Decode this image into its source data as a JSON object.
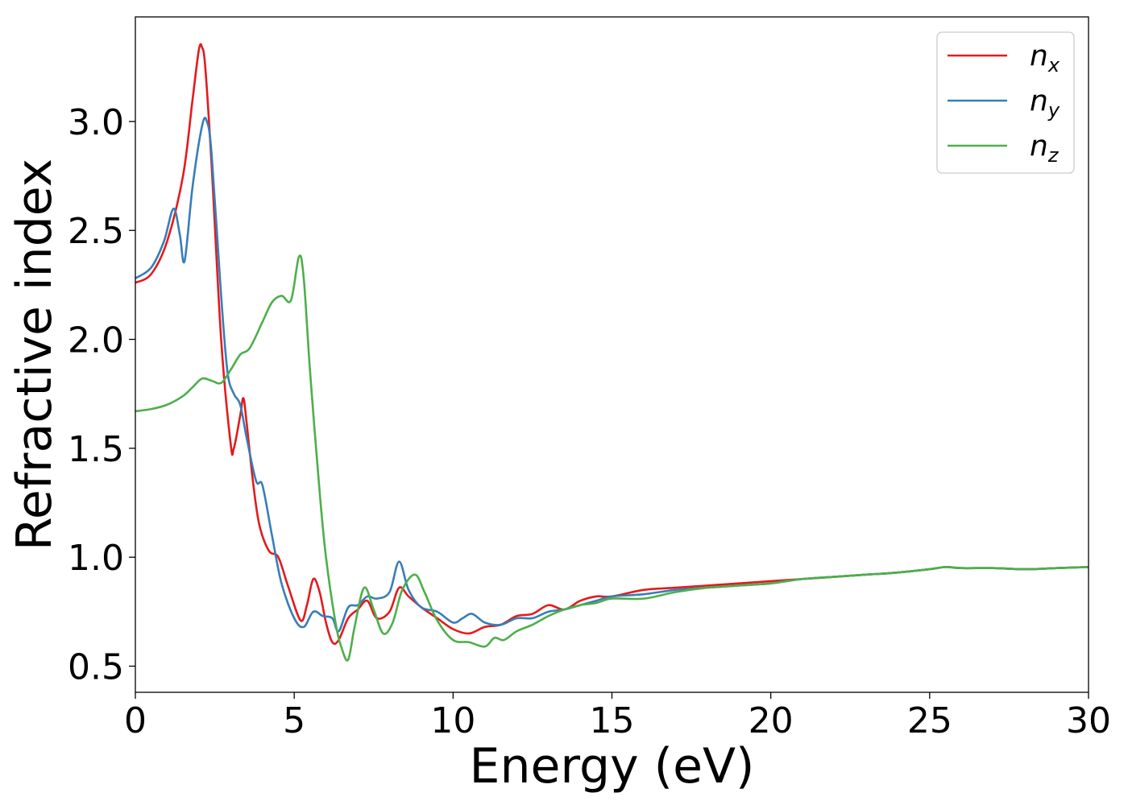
{
  "chart_data": {
    "type": "line",
    "xlabel": "Energy (eV)",
    "ylabel": "Refractive index",
    "xlim": [
      0,
      30
    ],
    "ylim": [
      0.38,
      3.48
    ],
    "xticks": [
      0,
      5,
      10,
      15,
      20,
      25,
      30
    ],
    "xtick_labels": [
      "0",
      "5",
      "10",
      "15",
      "20",
      "25",
      "30"
    ],
    "yticks": [
      0.5,
      1.0,
      1.5,
      2.0,
      2.5,
      3.0
    ],
    "ytick_labels": [
      "0.5",
      "1.0",
      "1.5",
      "2.0",
      "2.5",
      "3.0"
    ],
    "grid": false,
    "legend_position": "top-right",
    "series": [
      {
        "name": "n_x",
        "label_base": "n",
        "label_sub": "x",
        "color": "#e41a1c",
        "x": [
          0,
          0.5,
          1.0,
          1.5,
          1.8,
          2.0,
          2.1,
          2.2,
          2.4,
          2.7,
          3.0,
          3.1,
          3.3,
          3.4,
          3.5,
          3.7,
          3.9,
          4.2,
          4.5,
          4.8,
          5.2,
          5.4,
          5.6,
          5.8,
          6.0,
          6.2,
          6.4,
          6.7,
          7.0,
          7.3,
          7.6,
          8.0,
          8.3,
          8.6,
          9.0,
          9.5,
          10.0,
          10.5,
          11.0,
          11.5,
          12.0,
          12.5,
          13.0,
          13.5,
          14.0,
          14.5,
          15.0,
          16.0,
          17.0,
          18.0,
          19.0,
          20.0,
          21.0,
          22.0,
          23.0,
          24.0,
          25.0,
          25.5,
          26.0,
          27.0,
          28.0,
          29.0,
          30.0
        ],
        "y": [
          2.26,
          2.3,
          2.45,
          2.75,
          3.1,
          3.33,
          3.34,
          3.25,
          2.8,
          2.0,
          1.52,
          1.5,
          1.65,
          1.73,
          1.62,
          1.35,
          1.15,
          1.03,
          1.0,
          0.87,
          0.71,
          0.78,
          0.9,
          0.84,
          0.7,
          0.61,
          0.62,
          0.72,
          0.76,
          0.8,
          0.72,
          0.75,
          0.86,
          0.82,
          0.77,
          0.72,
          0.67,
          0.65,
          0.68,
          0.69,
          0.73,
          0.74,
          0.78,
          0.76,
          0.8,
          0.82,
          0.82,
          0.85,
          0.86,
          0.87,
          0.88,
          0.89,
          0.9,
          0.91,
          0.92,
          0.93,
          0.945,
          0.955,
          0.95,
          0.95,
          0.945,
          0.95,
          0.955
        ]
      },
      {
        "name": "n_y",
        "label_base": "n",
        "label_sub": "y",
        "color": "#377eb8",
        "x": [
          0,
          0.5,
          0.9,
          1.2,
          1.4,
          1.55,
          1.8,
          2.1,
          2.25,
          2.4,
          2.7,
          2.9,
          3.1,
          3.3,
          3.5,
          3.8,
          4.0,
          4.3,
          4.6,
          5.0,
          5.3,
          5.6,
          5.9,
          6.2,
          6.4,
          6.7,
          7.0,
          7.3,
          7.6,
          8.0,
          8.3,
          8.6,
          9.0,
          9.5,
          10.0,
          10.3,
          10.6,
          11.0,
          11.5,
          12.0,
          12.5,
          13.0,
          13.5,
          14.0,
          14.5,
          15.0,
          16.0,
          17.0,
          18.0,
          19.0,
          20.0,
          21.0,
          22.0,
          23.0,
          24.0,
          25.0,
          25.5,
          26.0,
          27.0,
          28.0,
          29.0,
          30.0
        ],
        "y": [
          2.28,
          2.33,
          2.45,
          2.6,
          2.48,
          2.36,
          2.7,
          2.98,
          3.0,
          2.85,
          2.2,
          1.85,
          1.75,
          1.7,
          1.55,
          1.35,
          1.33,
          1.1,
          0.88,
          0.72,
          0.68,
          0.75,
          0.73,
          0.72,
          0.66,
          0.77,
          0.78,
          0.82,
          0.81,
          0.84,
          0.98,
          0.85,
          0.77,
          0.75,
          0.7,
          0.72,
          0.74,
          0.7,
          0.69,
          0.72,
          0.72,
          0.75,
          0.76,
          0.78,
          0.8,
          0.82,
          0.83,
          0.85,
          0.86,
          0.87,
          0.88,
          0.9,
          0.91,
          0.92,
          0.93,
          0.945,
          0.955,
          0.95,
          0.95,
          0.945,
          0.95,
          0.955
        ]
      },
      {
        "name": "n_z",
        "label_base": "n",
        "label_sub": "z",
        "color": "#4daf4a",
        "x": [
          0,
          0.5,
          1.0,
          1.5,
          1.8,
          2.1,
          2.4,
          2.7,
          3.0,
          3.3,
          3.6,
          4.0,
          4.3,
          4.6,
          4.9,
          5.15,
          5.3,
          5.5,
          5.8,
          6.0,
          6.3,
          6.5,
          6.7,
          6.9,
          7.2,
          7.5,
          7.8,
          8.1,
          8.4,
          8.8,
          9.1,
          9.5,
          10.0,
          10.5,
          11.0,
          11.3,
          11.6,
          12.0,
          12.5,
          13.0,
          13.5,
          14.0,
          14.5,
          15.0,
          16.0,
          17.0,
          18.0,
          19.0,
          20.0,
          21.0,
          22.0,
          23.0,
          24.0,
          25.0,
          25.5,
          26.0,
          27.0,
          28.0,
          29.0,
          30.0
        ],
        "y": [
          1.67,
          1.68,
          1.7,
          1.74,
          1.78,
          1.82,
          1.81,
          1.8,
          1.86,
          1.93,
          1.96,
          2.08,
          2.17,
          2.2,
          2.18,
          2.38,
          2.28,
          1.85,
          1.3,
          1.0,
          0.7,
          0.58,
          0.53,
          0.68,
          0.86,
          0.76,
          0.65,
          0.7,
          0.85,
          0.92,
          0.84,
          0.71,
          0.62,
          0.61,
          0.59,
          0.63,
          0.62,
          0.66,
          0.69,
          0.73,
          0.76,
          0.78,
          0.79,
          0.81,
          0.81,
          0.84,
          0.86,
          0.87,
          0.88,
          0.9,
          0.91,
          0.92,
          0.93,
          0.945,
          0.955,
          0.95,
          0.95,
          0.945,
          0.95,
          0.955
        ]
      }
    ]
  }
}
